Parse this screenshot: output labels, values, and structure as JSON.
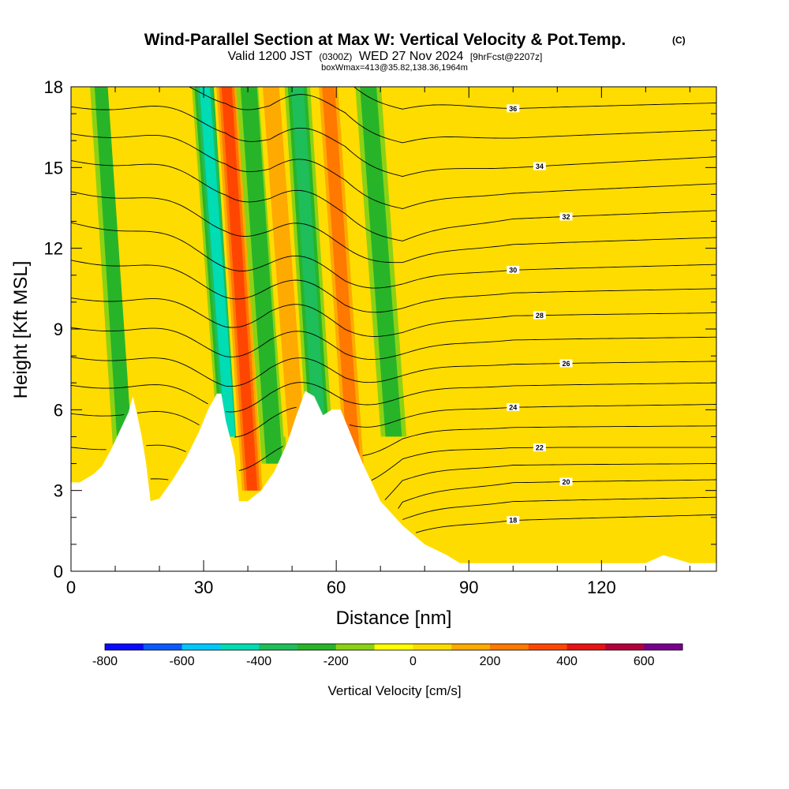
{
  "title": {
    "main": "Wind-Parallel Section at Max W: Vertical Velocity & Pot.Temp.",
    "copyright": "(C)",
    "valid_prefix": "Valid 1200 JST",
    "valid_utc": "(0300Z)",
    "valid_date": "WED 27 Nov 2024",
    "forecast": "[9hrFcst@2207z]",
    "boxinfo": "boxWmax=413@35.82,138.36,1964m"
  },
  "chart_data": {
    "type": "contour",
    "xlabel": "Distance [nm]",
    "ylabel": "Height [Kft MSL]",
    "xlim": [
      0,
      146
    ],
    "ylim": [
      0,
      18
    ],
    "x_ticks": [
      0,
      30,
      60,
      90,
      120
    ],
    "y_ticks": [
      0,
      3,
      6,
      9,
      12,
      15,
      18
    ],
    "grid": false,
    "terrain": {
      "description": "white terrain silhouette",
      "x": [
        0,
        2,
        5,
        7,
        9,
        11,
        13,
        14,
        15,
        16,
        17,
        18,
        20,
        23,
        26,
        29,
        31,
        33,
        34,
        35,
        37,
        38,
        40,
        43,
        46,
        49,
        51,
        53,
        55,
        57,
        59,
        61,
        63,
        66,
        70,
        75,
        80,
        85,
        88,
        90,
        95,
        100,
        110,
        120,
        130,
        134,
        140,
        146
      ],
      "height": [
        3.3,
        3.3,
        3.6,
        3.9,
        4.5,
        5.2,
        5.9,
        6.5,
        5.8,
        5.0,
        4.0,
        2.6,
        2.7,
        3.4,
        4.2,
        5.2,
        6.0,
        6.6,
        6.6,
        5.6,
        4.3,
        2.6,
        2.6,
        3.0,
        3.7,
        4.8,
        5.8,
        6.7,
        6.5,
        5.8,
        6.0,
        6.0,
        5.2,
        4.0,
        2.6,
        1.7,
        1.0,
        0.6,
        0.3,
        0.3,
        0.3,
        0.3,
        0.3,
        0.3,
        0.3,
        0.6,
        0.3,
        0.3
      ]
    },
    "vertical_velocity_cm_s": {
      "units": "cm/s",
      "background_range": [
        0,
        100
      ],
      "features": [
        {
          "x_center": 13,
          "w": -200,
          "sign": "down"
        },
        {
          "x_center": 17,
          "w": 150,
          "sign": "up"
        },
        {
          "x_center": 36,
          "w": -400,
          "sign": "down"
        },
        {
          "x_center": 41,
          "w": 413,
          "sign": "up"
        },
        {
          "x_center": 46,
          "w": -200,
          "sign": "down"
        },
        {
          "x_center": 51,
          "w": 200,
          "sign": "up"
        },
        {
          "x_center": 57,
          "w": -300,
          "sign": "down"
        },
        {
          "x_center": 64,
          "w": 300,
          "sign": "up"
        },
        {
          "x_center": 73,
          "w": -200,
          "sign": "down"
        }
      ]
    },
    "potential_temperature_contours": {
      "units": "deg C",
      "interval": 1,
      "labeled_values": [
        18,
        20,
        22,
        24,
        26,
        28,
        30,
        32,
        34,
        36
      ],
      "far_field_heights_kft": {
        "x_values": [
          0,
          35,
          45,
          62,
          75,
          100,
          146
        ],
        "levels": [
          {
            "theta": 18,
            "heights": [
              0.0,
              0.0,
              0.0,
              0.0,
              1.4,
              1.9,
              2.1
            ]
          },
          {
            "theta": 20,
            "heights": [
              0.0,
              0.0,
              0.0,
              0.0,
              2.7,
              3.3,
              3.4
            ]
          },
          {
            "theta": 22,
            "heights": [
              3.4,
              3.0,
              3.0,
              3.1,
              4.3,
              4.6,
              4.6
            ]
          },
          {
            "theta": 24,
            "heights": [
              5.9,
              5.5,
              5.6,
              5.5,
              5.8,
              6.1,
              6.2
            ]
          },
          {
            "theta": 26,
            "heights": [
              8.0,
              7.4,
              7.5,
              7.2,
              7.4,
              7.7,
              7.8
            ]
          },
          {
            "theta": 28,
            "heights": [
              10.2,
              9.6,
              9.6,
              9.0,
              9.0,
              9.5,
              9.6
            ]
          },
          {
            "theta": 30,
            "heights": [
              13.0,
              11.8,
              11.4,
              10.8,
              10.8,
              11.2,
              11.4
            ]
          },
          {
            "theta": 32,
            "heights": [
              15.3,
              14.5,
              13.8,
              13.3,
              12.4,
              13.1,
              13.4
            ]
          },
          {
            "theta": 34,
            "heights": [
              17.3,
              16.8,
              16.0,
              15.8,
              14.8,
              15.0,
              15.4
            ]
          },
          {
            "theta": 36,
            "heights": [
              19.0,
              19.0,
              18.5,
              18.3,
              17.3,
              17.2,
              17.4
            ]
          }
        ]
      }
    },
    "colorbar": {
      "label": "Vertical Velocity [cm/s]",
      "range": [
        -800,
        700
      ],
      "step": 100,
      "tick_labels": [
        "-800",
        "-600",
        "-400",
        "-200",
        "0",
        "200",
        "400",
        "600"
      ],
      "colors": [
        "#0a0aff",
        "#0a5aff",
        "#00c8ff",
        "#00dcb4",
        "#1ebe5a",
        "#28b428",
        "#8cd214",
        "#ffff00",
        "#ffdc00",
        "#ffaa00",
        "#ff7800",
        "#ff4600",
        "#e61414",
        "#b4003c",
        "#78008c"
      ]
    }
  }
}
